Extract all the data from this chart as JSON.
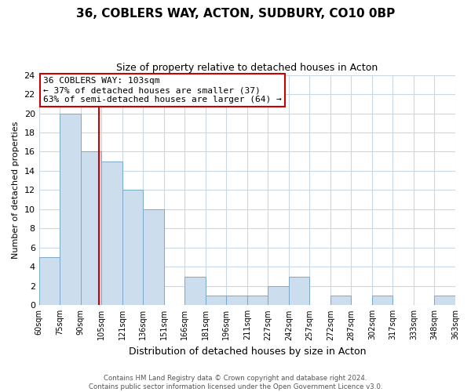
{
  "title": "36, COBLERS WAY, ACTON, SUDBURY, CO10 0BP",
  "subtitle": "Size of property relative to detached houses in Acton",
  "xlabel": "Distribution of detached houses by size in Acton",
  "ylabel": "Number of detached properties",
  "bin_labels": [
    "60sqm",
    "75sqm",
    "90sqm",
    "105sqm",
    "121sqm",
    "136sqm",
    "151sqm",
    "166sqm",
    "181sqm",
    "196sqm",
    "211sqm",
    "227sqm",
    "242sqm",
    "257sqm",
    "272sqm",
    "287sqm",
    "302sqm",
    "317sqm",
    "333sqm",
    "348sqm",
    "363sqm"
  ],
  "bar_values": [
    5,
    20,
    16,
    15,
    12,
    10,
    0,
    3,
    1,
    1,
    1,
    2,
    3,
    0,
    1,
    0,
    1,
    0,
    0,
    1
  ],
  "bar_color": "#ccdded",
  "bar_edge_color": "#7aaac8",
  "ylim": [
    0,
    24
  ],
  "yticks": [
    0,
    2,
    4,
    6,
    8,
    10,
    12,
    14,
    16,
    18,
    20,
    22,
    24
  ],
  "vline_color": "#cc0000",
  "annotation_title": "36 COBLERS WAY: 103sqm",
  "annotation_line1": "← 37% of detached houses are smaller (37)",
  "annotation_line2": "63% of semi-detached houses are larger (64) →",
  "annotation_box_facecolor": "#ffffff",
  "annotation_box_edgecolor": "#cc0000",
  "footer_line1": "Contains HM Land Registry data © Crown copyright and database right 2024.",
  "footer_line2": "Contains public sector information licensed under the Open Government Licence v3.0.",
  "background_color": "#ffffff",
  "grid_color": "#c8d8e4"
}
